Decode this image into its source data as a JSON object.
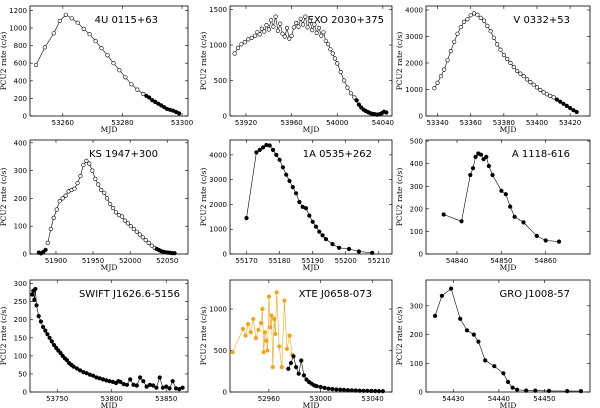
{
  "figure": {
    "ylabel": "PCU2 rate (c/s)",
    "xlabel": "MJD"
  },
  "chart_data": [
    {
      "type": "scatter",
      "title": "4U 0115+63",
      "xlabel": "MJD",
      "ylabel": "PCU2 rate (c/s)",
      "xlim": [
        53249,
        53302
      ],
      "ylim": [
        0,
        1250
      ],
      "xticks": [
        53260,
        53280,
        53300
      ],
      "yticks": [
        0,
        200,
        400,
        600,
        800,
        1000,
        1200
      ],
      "series": [
        {
          "name": "open",
          "marker": "open",
          "color": "#000000",
          "x": [
            53251,
            53254,
            53257,
            53259,
            53261,
            53263,
            53265,
            53267,
            53269,
            53271,
            53273,
            53275,
            53277,
            53279,
            53281,
            53283,
            53285,
            53287
          ],
          "y": [
            580,
            780,
            940,
            1080,
            1150,
            1110,
            1060,
            990,
            930,
            850,
            770,
            690,
            600,
            520,
            440,
            360,
            300,
            250
          ]
        },
        {
          "name": "filled",
          "marker": "filled",
          "color": "#000000",
          "x": [
            53288,
            53289,
            53290,
            53291,
            53292,
            53293,
            53294,
            53295,
            53296,
            53297,
            53298,
            53299
          ],
          "y": [
            230,
            210,
            180,
            160,
            140,
            120,
            100,
            80,
            70,
            60,
            45,
            30
          ]
        }
      ]
    },
    {
      "type": "scatter",
      "title": "EXO 2030+375",
      "xlabel": "MJD",
      "ylabel": "PCU2 rate (c/s)",
      "xlim": [
        53906,
        54048
      ],
      "ylim": [
        0,
        1550
      ],
      "xticks": [
        53920,
        53960,
        54000,
        54040
      ],
      "yticks": [
        0,
        500,
        1000,
        1500
      ],
      "series": [
        {
          "name": "open",
          "marker": "open",
          "color": "#000000",
          "x": [
            53910,
            53913,
            53916,
            53919,
            53922,
            53925,
            53928,
            53930,
            53932,
            53934,
            53936,
            53938,
            53940,
            53942,
            53944,
            53946,
            53948,
            53950,
            53952,
            53954,
            53956,
            53958,
            53960,
            53962,
            53964,
            53966,
            53968,
            53970,
            53972,
            53974,
            53976,
            53978,
            53980,
            53982,
            53984,
            53986,
            53988,
            53990,
            53992,
            53994,
            53996,
            53998,
            54000,
            54003,
            54006,
            54009,
            54012,
            54015
          ],
          "y": [
            880,
            960,
            1010,
            1040,
            1080,
            1100,
            1130,
            1180,
            1150,
            1230,
            1190,
            1280,
            1220,
            1350,
            1260,
            1400,
            1200,
            1300,
            1160,
            1120,
            1240,
            1090,
            1130,
            1250,
            1310,
            1260,
            1370,
            1290,
            1400,
            1250,
            1340,
            1210,
            1290,
            1170,
            1240,
            1130,
            1180,
            1060,
            1010,
            940,
            880,
            810,
            740,
            620,
            500,
            400,
            320,
            260
          ]
        },
        {
          "name": "filled",
          "marker": "filled",
          "color": "#000000",
          "x": [
            54017,
            54019,
            54021,
            54023,
            54025,
            54027,
            54029,
            54031,
            54033,
            54035,
            54037,
            54039,
            54041,
            54043
          ],
          "y": [
            220,
            160,
            120,
            90,
            70,
            55,
            40,
            30,
            25,
            20,
            25,
            40,
            60,
            50
          ]
        }
      ]
    },
    {
      "type": "scatter",
      "title": "V 0332+53",
      "xlabel": "MJD",
      "ylabel": "PCU2 rate (c/s)",
      "xlim": [
        53333,
        53432
      ],
      "ylim": [
        0,
        4150
      ],
      "xticks": [
        53340,
        53360,
        53380,
        53400,
        53420
      ],
      "yticks": [
        0,
        1000,
        2000,
        3000,
        4000
      ],
      "series": [
        {
          "name": "open",
          "marker": "open",
          "color": "#000000",
          "x": [
            53338,
            53340,
            53342,
            53344,
            53346,
            53348,
            53350,
            53352,
            53354,
            53356,
            53358,
            53360,
            53362,
            53364,
            53366,
            53368,
            53370,
            53372,
            53374,
            53376,
            53378,
            53380,
            53382,
            53384,
            53386,
            53388,
            53390,
            53392,
            53394,
            53396,
            53398,
            53400,
            53402,
            53404,
            53406,
            53408,
            53410
          ],
          "y": [
            1050,
            1250,
            1500,
            1750,
            2100,
            2450,
            2800,
            3100,
            3350,
            3550,
            3650,
            3800,
            3870,
            3820,
            3700,
            3600,
            3400,
            3200,
            2950,
            2700,
            2500,
            2300,
            2150,
            2000,
            1850,
            1700,
            1600,
            1500,
            1380,
            1280,
            1180,
            1080,
            980,
            890,
            820,
            760,
            700
          ]
        },
        {
          "name": "filled",
          "marker": "filled",
          "color": "#000000",
          "x": [
            53412,
            53414,
            53416,
            53418,
            53420,
            53422,
            53424
          ],
          "y": [
            620,
            540,
            460,
            380,
            300,
            220,
            150
          ]
        }
      ]
    },
    {
      "type": "scatter",
      "title": "KS 1947+300",
      "xlabel": "MJD",
      "ylabel": "PCU2 rate (c/s)",
      "xlim": [
        51865,
        52078
      ],
      "ylim": [
        0,
        410
      ],
      "xticks": [
        51900,
        51950,
        52000,
        52050
      ],
      "yticks": [
        0,
        100,
        200,
        300,
        400
      ],
      "series": [
        {
          "name": "filled-start",
          "marker": "filled",
          "color": "#000000",
          "x": [
            51877,
            51880,
            51883,
            51886
          ],
          "y": [
            5,
            2,
            8,
            15
          ]
        },
        {
          "name": "open",
          "marker": "open",
          "color": "#000000",
          "x": [
            51889,
            51893,
            51897,
            51901,
            51905,
            51909,
            51913,
            51917,
            51921,
            51925,
            51929,
            51933,
            51937,
            51941,
            51945,
            51949,
            51953,
            51957,
            51961,
            51965,
            51969,
            51973,
            51977,
            51981,
            51985,
            51989,
            51993,
            51997,
            52001,
            52005,
            52009,
            52013,
            52017,
            52021,
            52025,
            52029,
            52033
          ],
          "y": [
            40,
            90,
            130,
            160,
            190,
            200,
            210,
            225,
            230,
            235,
            255,
            280,
            320,
            335,
            325,
            300,
            270,
            250,
            230,
            220,
            200,
            180,
            165,
            150,
            140,
            135,
            120,
            110,
            100,
            90,
            80,
            70,
            60,
            50,
            40,
            30,
            22
          ]
        },
        {
          "name": "filled-end",
          "marker": "filled",
          "color": "#000000",
          "x": [
            52036,
            52039,
            52042,
            52045,
            52048,
            52051,
            52054,
            52057,
            52060
          ],
          "y": [
            18,
            14,
            10,
            8,
            6,
            5,
            4,
            3,
            3
          ]
        }
      ]
    },
    {
      "type": "scatter",
      "title": "1A 0535+262",
      "xlabel": "MJD",
      "ylabel": "PCU2 rate (c/s)",
      "xlim": [
        55165,
        55214
      ],
      "ylim": [
        0,
        4600
      ],
      "xticks": [
        55170,
        55180,
        55190,
        55200,
        55210
      ],
      "yticks": [
        0,
        1000,
        2000,
        3000,
        4000
      ],
      "series": [
        {
          "name": "filled",
          "marker": "filled",
          "color": "#000000",
          "x": [
            55170,
            55173,
            55174,
            55175,
            55176,
            55177,
            55178,
            55179,
            55180,
            55181,
            55182,
            55183,
            55184,
            55185,
            55186,
            55187,
            55188,
            55189,
            55190,
            55191,
            55192,
            55193,
            55194,
            55196,
            55198,
            55201,
            55204,
            55208
          ],
          "y": [
            1450,
            4100,
            4200,
            4300,
            4400,
            4380,
            4200,
            4000,
            3800,
            3500,
            3200,
            2950,
            2700,
            2450,
            2100,
            1900,
            1850,
            1550,
            1300,
            1100,
            900,
            750,
            600,
            400,
            250,
            200,
            100,
            50
          ]
        }
      ]
    },
    {
      "type": "scatter",
      "title": "A 1118-616",
      "xlabel": "MJD",
      "ylabel": "PCU2 rate (c/s)",
      "xlim": [
        54833,
        54870
      ],
      "ylim": [
        0,
        505
      ],
      "xticks": [
        54840,
        54850,
        54860
      ],
      "yticks": [
        0,
        100,
        200,
        300,
        400,
        500
      ],
      "series": [
        {
          "name": "filled",
          "marker": "filled",
          "color": "#000000",
          "x": [
            54837,
            54841,
            54843,
            54843.6,
            54844.2,
            54844.8,
            54845.4,
            54846,
            54846.6,
            54847.2,
            54848,
            54850,
            54851,
            54852,
            54853,
            54855,
            54858,
            54860,
            54863
          ],
          "y": [
            175,
            145,
            350,
            380,
            430,
            445,
            440,
            420,
            430,
            390,
            350,
            280,
            265,
            210,
            165,
            140,
            80,
            60,
            55
          ]
        }
      ]
    },
    {
      "type": "scatter",
      "title": "SWIFT J1626.6-5156",
      "xlabel": "MJD",
      "ylabel": "PCU2 rate (c/s)",
      "xlim": [
        53725,
        53870
      ],
      "ylim": [
        0,
        310
      ],
      "xticks": [
        53750,
        53800,
        53850
      ],
      "yticks": [
        0,
        50,
        100,
        150,
        200,
        250,
        300
      ],
      "series": [
        {
          "name": "filled",
          "marker": "filled",
          "color": "#000000",
          "x": [
            53727,
            53728,
            53729,
            53730,
            53731,
            53733,
            53735,
            53737,
            53739,
            53741,
            53743,
            53745,
            53747,
            53749,
            53751,
            53753,
            53755,
            53757,
            53759,
            53761,
            53763,
            53765,
            53768,
            53771,
            53774,
            53777,
            53780,
            53783,
            53786,
            53789,
            53792,
            53795,
            53798,
            53801,
            53804,
            53806,
            53808,
            53811,
            53814,
            53817,
            53820,
            53823,
            53826,
            53829,
            53832,
            53835,
            53838,
            53841,
            53844,
            53847,
            53850,
            53853,
            53856,
            53859,
            53862,
            53865
          ],
          "y": [
            270,
            280,
            255,
            285,
            240,
            210,
            195,
            180,
            170,
            160,
            150,
            140,
            130,
            122,
            115,
            108,
            100,
            93,
            88,
            80,
            75,
            70,
            65,
            60,
            55,
            52,
            48,
            45,
            40,
            38,
            35,
            32,
            30,
            28,
            25,
            30,
            28,
            22,
            20,
            35,
            20,
            18,
            40,
            30,
            15,
            20,
            18,
            12,
            40,
            12,
            15,
            10,
            30,
            10,
            8,
            12
          ]
        }
      ]
    },
    {
      "type": "scatter",
      "title": "XTE J0658-073",
      "xlabel": "MJD",
      "ylabel": "PCU2 rate (c/s)",
      "xlim": [
        52930,
        53055
      ],
      "ylim": [
        0,
        1350
      ],
      "xticks": [
        52960,
        53000,
        53040
      ],
      "yticks": [
        0,
        500,
        1000
      ],
      "series": [
        {
          "name": "orange",
          "marker": "filled",
          "color": "#f2a317",
          "x": [
            52932,
            52940,
            52942,
            52944,
            52946,
            52948,
            52950,
            52952,
            52954,
            52955,
            52956,
            52957,
            52958,
            52959,
            52960,
            52961,
            52962,
            52963,
            52964,
            52965,
            52966,
            52968,
            52970,
            52972,
            52974,
            52976,
            52978
          ],
          "y": [
            480,
            760,
            680,
            820,
            720,
            880,
            650,
            750,
            830,
            1000,
            480,
            720,
            620,
            500,
            1150,
            780,
            920,
            300,
            880,
            700,
            1200,
            550,
            300,
            1100,
            520,
            680,
            450
          ]
        },
        {
          "name": "black",
          "marker": "filled",
          "color": "#000000",
          "x": [
            52975,
            52977,
            52979,
            52981,
            52983,
            52985,
            52987,
            52989,
            52991,
            52993,
            52995,
            52997,
            53000,
            53003,
            53006,
            53009,
            53012,
            53015,
            53018,
            53021,
            53024,
            53027,
            53030,
            53033,
            53036,
            53039,
            53042,
            53045,
            53048
          ],
          "y": [
            280,
            350,
            430,
            300,
            220,
            380,
            200,
            150,
            120,
            100,
            80,
            70,
            60,
            50,
            40,
            35,
            30,
            28,
            25,
            22,
            20,
            18,
            16,
            15,
            14,
            12,
            12,
            10,
            10
          ]
        }
      ]
    },
    {
      "type": "scatter",
      "title": "GRO J1008-57",
      "xlabel": "MJD",
      "ylabel": "PCU2 rate (c/s)",
      "xlim": [
        54424,
        54460
      ],
      "ylim": [
        0,
        390
      ],
      "xticks": [
        54430,
        54440,
        54450
      ],
      "yticks": [
        0,
        100,
        200,
        300
      ],
      "series": [
        {
          "name": "filled",
          "marker": "filled",
          "color": "#000000",
          "x": [
            54426,
            54427.5,
            54429.5,
            54431.5,
            54433,
            54434.5,
            54435.5,
            54437,
            54439,
            54441,
            54442,
            54443,
            54444,
            54446,
            54448,
            54451,
            54455,
            54458
          ],
          "y": [
            265,
            335,
            360,
            255,
            215,
            200,
            175,
            110,
            90,
            65,
            35,
            15,
            8,
            5,
            5,
            4,
            3,
            3
          ]
        }
      ]
    }
  ]
}
